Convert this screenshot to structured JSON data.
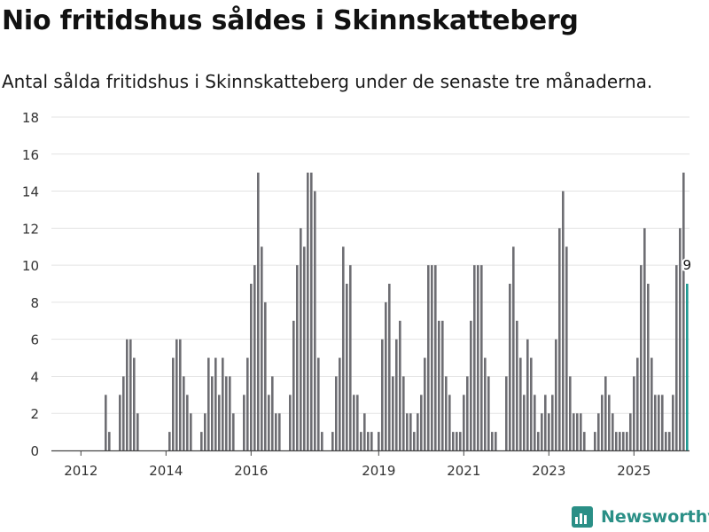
{
  "title": "Nio fritidshus såldes i Skinnskatteberg",
  "subtitle": "Antal sålda fritidshus i Skinnskatteberg under de senaste tre månaderna.",
  "brand": {
    "name": "Newsworthy",
    "color": "#2a8f86",
    "icon": "newsworthy-logo-icon"
  },
  "colors": {
    "bar": "#6e6e73",
    "highlight": "#1f9a92",
    "grid": "#e3e3e3",
    "axis": "#444444",
    "text": "#333333"
  },
  "chart_data": {
    "type": "bar",
    "title": "Nio fritidshus såldes i Skinnskatteberg",
    "xlabel": "",
    "ylabel": "",
    "ylim": [
      0,
      18
    ],
    "y_ticks": [
      0,
      2,
      4,
      6,
      8,
      10,
      12,
      14,
      16,
      18
    ],
    "x_tick_labels": [
      "2012",
      "2014",
      "2016",
      "2019",
      "2021",
      "2023",
      "2025"
    ],
    "grid": true,
    "series_note": "Monthly values, one bar per month starting January 2012",
    "values": [
      0,
      0,
      0,
      0,
      0,
      0,
      0,
      3,
      1,
      0,
      0,
      3,
      4,
      6,
      6,
      5,
      2,
      0,
      0,
      0,
      0,
      0,
      0,
      0,
      0,
      1,
      5,
      6,
      6,
      4,
      3,
      2,
      0,
      0,
      1,
      2,
      5,
      4,
      5,
      3,
      5,
      4,
      4,
      2,
      0,
      0,
      3,
      5,
      9,
      10,
      15,
      11,
      8,
      3,
      4,
      2,
      2,
      0,
      0,
      3,
      7,
      10,
      12,
      11,
      15,
      15,
      14,
      5,
      1,
      0,
      0,
      1,
      4,
      5,
      11,
      9,
      10,
      3,
      3,
      1,
      2,
      1,
      1,
      0,
      1,
      6,
      8,
      9,
      4,
      6,
      7,
      4,
      2,
      2,
      1,
      2,
      3,
      5,
      10,
      10,
      10,
      7,
      7,
      4,
      3,
      1,
      1,
      1,
      3,
      4,
      7,
      10,
      10,
      10,
      5,
      4,
      1,
      1,
      0,
      0,
      4,
      9,
      11,
      7,
      5,
      3,
      6,
      5,
      3,
      1,
      2,
      3,
      2,
      3,
      6,
      12,
      14,
      11,
      4,
      2,
      2,
      2,
      1,
      0,
      0,
      1,
      2,
      3,
      4,
      3,
      2,
      1,
      1,
      1,
      1,
      2,
      4,
      5,
      10,
      12,
      9,
      5,
      3,
      3,
      3,
      1,
      1,
      3,
      10,
      12,
      15,
      9
    ],
    "highlight": {
      "last_value": 9,
      "label": "9"
    }
  }
}
